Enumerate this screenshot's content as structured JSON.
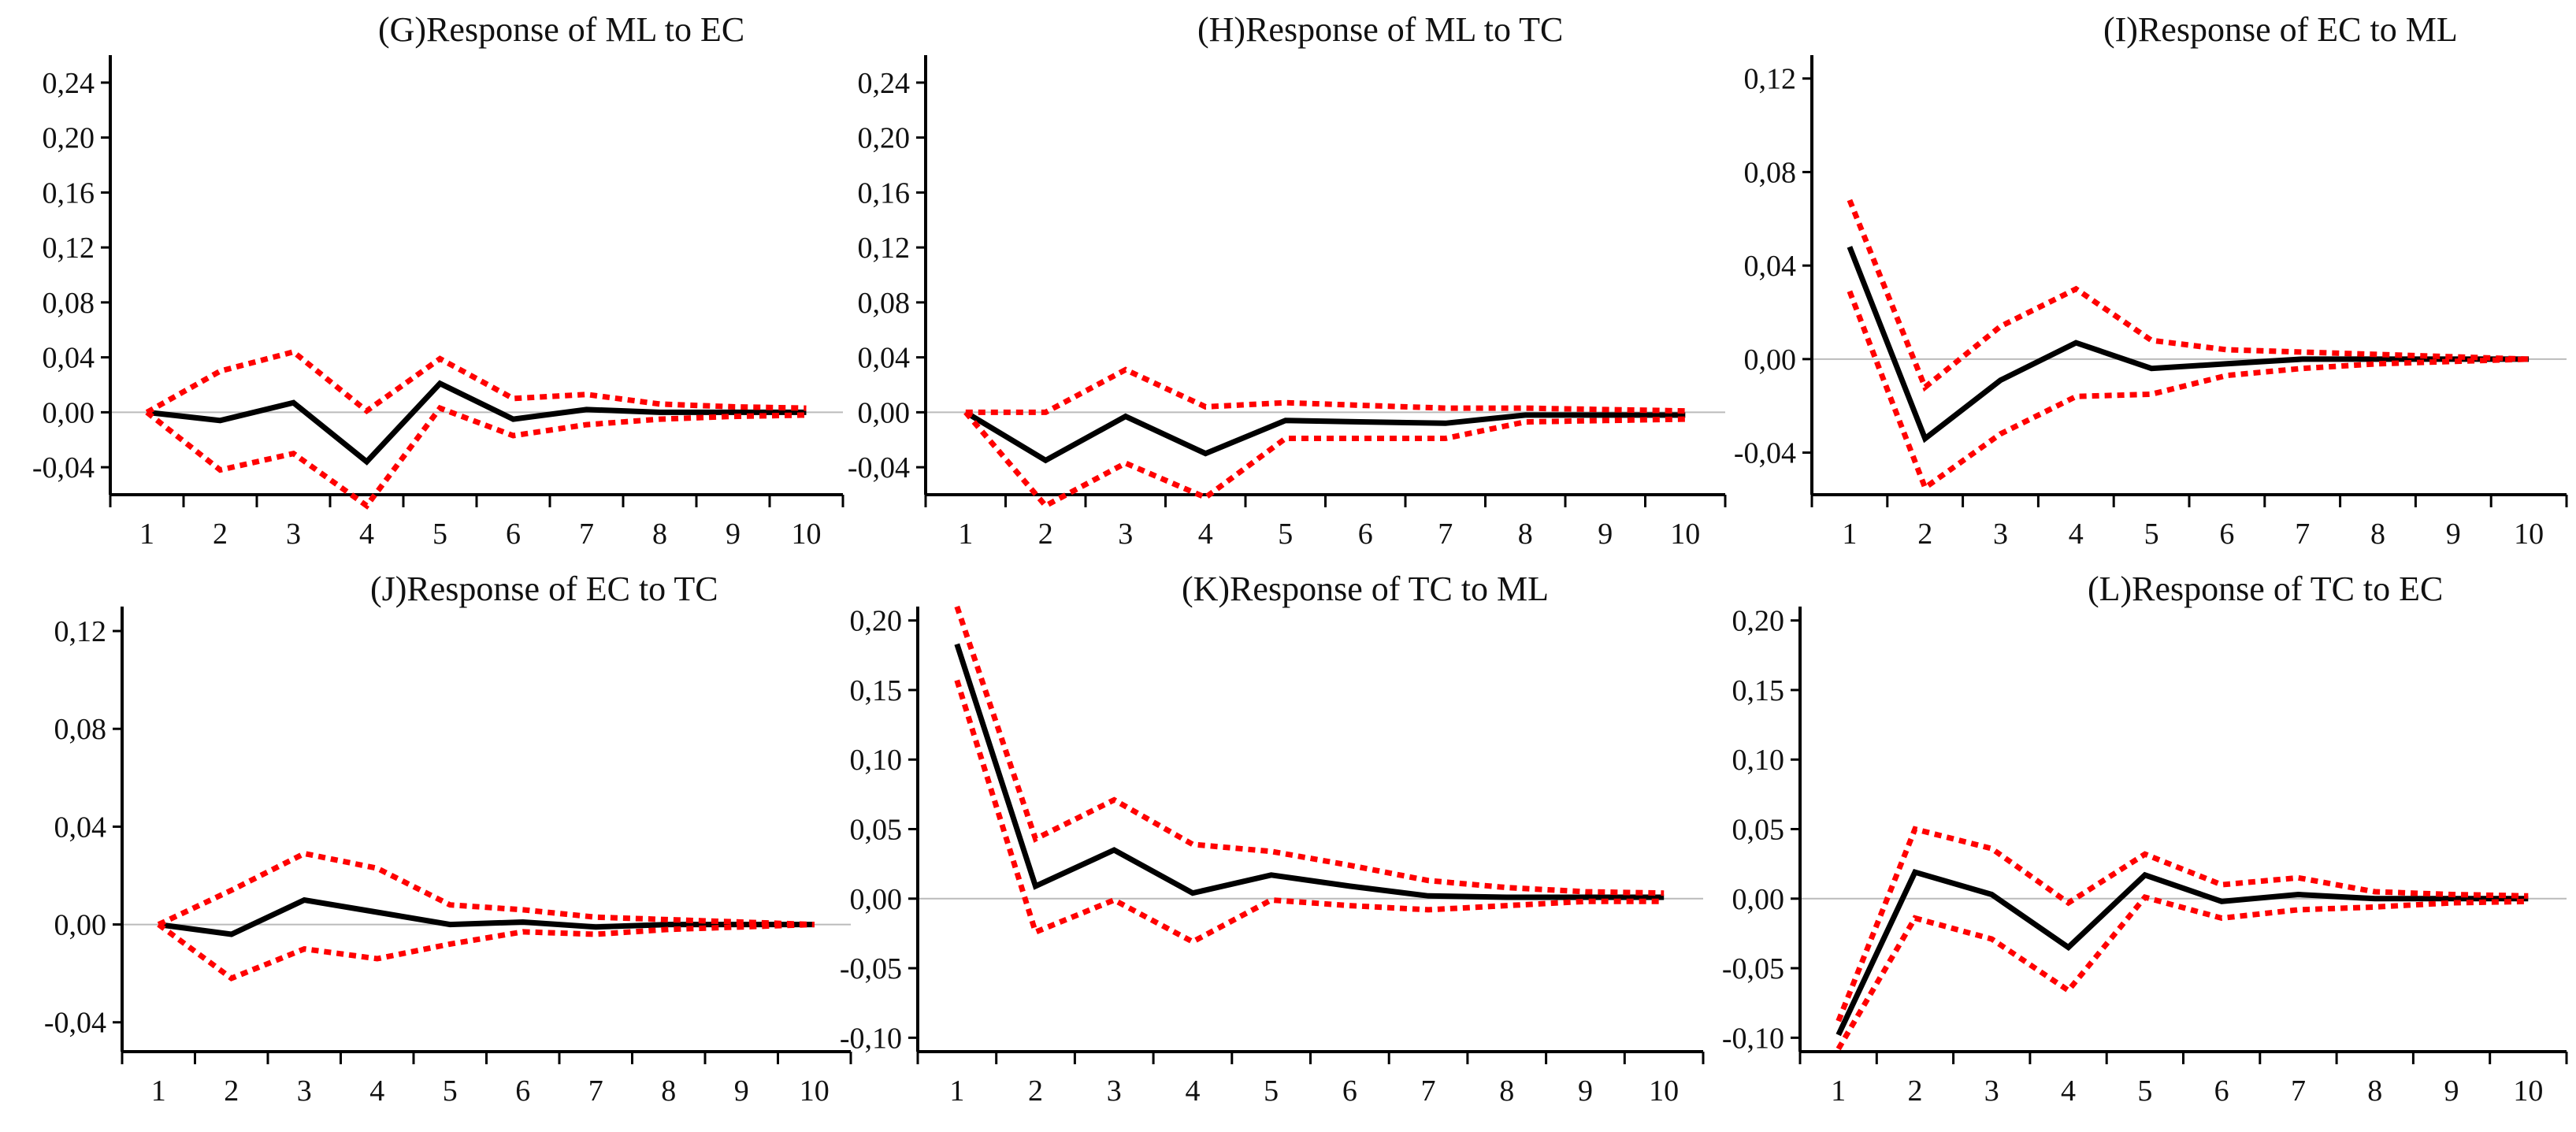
{
  "colors": {
    "response": "#000000",
    "bands": "#ff0000",
    "zero_line": "#bbbbbb",
    "axis": "#000000"
  },
  "chart_data": [
    {
      "type": "line",
      "title": "(G)Response of ML to EC",
      "x": [
        1,
        2,
        3,
        4,
        5,
        6,
        7,
        8,
        9,
        10
      ],
      "ylim": [
        -0.06,
        0.26
      ],
      "yticks": [
        "0,24",
        "0,20",
        "0,16",
        "0,12",
        "0,08",
        "0,04",
        "0,00",
        "-0,04"
      ],
      "ytick_values": [
        0.24,
        0.2,
        0.16,
        0.12,
        0.08,
        0.04,
        0.0,
        -0.04
      ],
      "series": [
        {
          "name": "response",
          "style": "solid",
          "values": [
            0.0,
            -0.006,
            0.007,
            -0.036,
            0.021,
            -0.005,
            0.002,
            0.0,
            0.0,
            0.0
          ]
        },
        {
          "name": "upper",
          "style": "dotted",
          "values": [
            0.0,
            0.03,
            0.044,
            0.001,
            0.039,
            0.01,
            0.013,
            0.006,
            0.004,
            0.003
          ]
        },
        {
          "name": "lower",
          "style": "dotted",
          "values": [
            0.0,
            -0.042,
            -0.03,
            -0.068,
            0.003,
            -0.017,
            -0.009,
            -0.005,
            -0.003,
            -0.002
          ]
        }
      ]
    },
    {
      "type": "line",
      "title": "(H)Response of ML to TC",
      "x": [
        1,
        2,
        3,
        4,
        5,
        6,
        7,
        8,
        9,
        10
      ],
      "ylim": [
        -0.06,
        0.26
      ],
      "yticks": [
        "0,24",
        "0,20",
        "0,16",
        "0,12",
        "0,08",
        "0,04",
        "0,00",
        "-0,04"
      ],
      "ytick_values": [
        0.24,
        0.2,
        0.16,
        0.12,
        0.08,
        0.04,
        0.0,
        -0.04
      ],
      "series": [
        {
          "name": "response",
          "style": "solid",
          "values": [
            0.0,
            -0.035,
            -0.003,
            -0.03,
            -0.006,
            -0.007,
            -0.008,
            -0.002,
            -0.002,
            -0.002
          ]
        },
        {
          "name": "upper",
          "style": "dotted",
          "values": [
            0.0,
            0.0,
            0.031,
            0.004,
            0.007,
            0.005,
            0.003,
            0.003,
            0.002,
            0.001
          ]
        },
        {
          "name": "lower",
          "style": "dotted",
          "values": [
            0.0,
            -0.068,
            -0.037,
            -0.062,
            -0.019,
            -0.019,
            -0.019,
            -0.007,
            -0.006,
            -0.005
          ]
        }
      ]
    },
    {
      "type": "line",
      "title": "(I)Response of EC to ML",
      "x": [
        1,
        2,
        3,
        4,
        5,
        6,
        7,
        8,
        9,
        10
      ],
      "ylim": [
        -0.058,
        0.13
      ],
      "yticks": [
        "0,12",
        "0,08",
        "0,04",
        "0,00",
        "-0,04"
      ],
      "ytick_values": [
        0.12,
        0.08,
        0.04,
        0.0,
        -0.04
      ],
      "series": [
        {
          "name": "response",
          "style": "solid",
          "values": [
            0.048,
            -0.034,
            -0.009,
            0.007,
            -0.004,
            -0.002,
            0.0,
            0.0,
            0.0,
            0.0
          ]
        },
        {
          "name": "upper",
          "style": "dotted",
          "values": [
            0.068,
            -0.012,
            0.014,
            0.03,
            0.008,
            0.004,
            0.003,
            0.002,
            0.001,
            0.0
          ]
        },
        {
          "name": "lower",
          "style": "dotted",
          "values": [
            0.029,
            -0.055,
            -0.032,
            -0.016,
            -0.015,
            -0.007,
            -0.004,
            -0.002,
            -0.001,
            0.0
          ]
        }
      ]
    },
    {
      "type": "line",
      "title": "(J)Response of EC to TC",
      "x": [
        1,
        2,
        3,
        4,
        5,
        6,
        7,
        8,
        9,
        10
      ],
      "ylim": [
        -0.052,
        0.13
      ],
      "yticks": [
        "0,12",
        "0,08",
        "0,04",
        "0,00",
        "-0,04"
      ],
      "ytick_values": [
        0.12,
        0.08,
        0.04,
        0.0,
        -0.04
      ],
      "series": [
        {
          "name": "response",
          "style": "solid",
          "values": [
            0.0,
            -0.004,
            0.01,
            0.005,
            0.0,
            0.001,
            -0.001,
            0.0,
            0.0,
            0.0
          ]
        },
        {
          "name": "upper",
          "style": "dotted",
          "values": [
            0.0,
            0.014,
            0.029,
            0.023,
            0.008,
            0.006,
            0.003,
            0.002,
            0.001,
            0.0
          ]
        },
        {
          "name": "lower",
          "style": "dotted",
          "values": [
            0.0,
            -0.022,
            -0.01,
            -0.014,
            -0.008,
            -0.003,
            -0.004,
            -0.002,
            -0.001,
            0.0
          ]
        }
      ]
    },
    {
      "type": "line",
      "title": "(K)Response of TC to ML",
      "x": [
        1,
        2,
        3,
        4,
        5,
        6,
        7,
        8,
        9,
        10
      ],
      "ylim": [
        -0.11,
        0.21
      ],
      "yticks": [
        "0,20",
        "0,15",
        "0,10",
        "0,05",
        "0,00",
        "-0,05",
        "-0,10"
      ],
      "ytick_values": [
        0.2,
        0.15,
        0.1,
        0.05,
        0.0,
        -0.05,
        -0.1
      ],
      "series": [
        {
          "name": "response",
          "style": "solid",
          "values": [
            0.183,
            0.009,
            0.035,
            0.004,
            0.017,
            0.009,
            0.002,
            0.001,
            0.001,
            0.001
          ]
        },
        {
          "name": "upper",
          "style": "dotted",
          "values": [
            0.21,
            0.043,
            0.071,
            0.039,
            0.034,
            0.024,
            0.013,
            0.008,
            0.005,
            0.004
          ]
        },
        {
          "name": "lower",
          "style": "dotted",
          "values": [
            0.157,
            -0.024,
            -0.001,
            -0.031,
            -0.001,
            -0.005,
            -0.008,
            -0.005,
            -0.002,
            -0.002
          ]
        }
      ]
    },
    {
      "type": "line",
      "title": "(L)Response of TC to EC",
      "x": [
        1,
        2,
        3,
        4,
        5,
        6,
        7,
        8,
        9,
        10
      ],
      "ylim": [
        -0.11,
        0.21
      ],
      "yticks": [
        "0,20",
        "0,15",
        "0,10",
        "0,05",
        "0,00",
        "-0,05",
        "-0,10"
      ],
      "ytick_values": [
        0.2,
        0.15,
        0.1,
        0.05,
        0.0,
        -0.05,
        -0.1
      ],
      "series": [
        {
          "name": "response",
          "style": "solid",
          "values": [
            -0.098,
            0.019,
            0.003,
            -0.035,
            0.017,
            -0.002,
            0.003,
            0.0,
            0.0,
            0.0
          ]
        },
        {
          "name": "upper",
          "style": "dotted",
          "values": [
            -0.088,
            0.05,
            0.036,
            -0.003,
            0.032,
            0.01,
            0.015,
            0.005,
            0.003,
            0.002
          ]
        },
        {
          "name": "lower",
          "style": "dotted",
          "values": [
            -0.108,
            -0.014,
            -0.029,
            -0.066,
            0.001,
            -0.014,
            -0.008,
            -0.006,
            -0.003,
            -0.002
          ]
        }
      ]
    }
  ]
}
